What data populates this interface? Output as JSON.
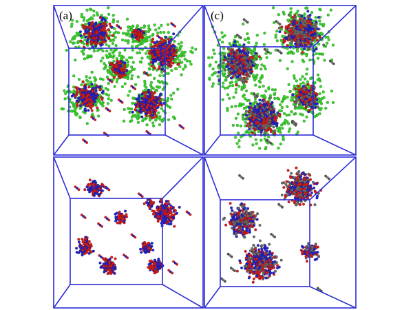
{
  "panel_a": {
    "label": "(a)"
  },
  "panel_c": {
    "label": "(c)"
  }
}
